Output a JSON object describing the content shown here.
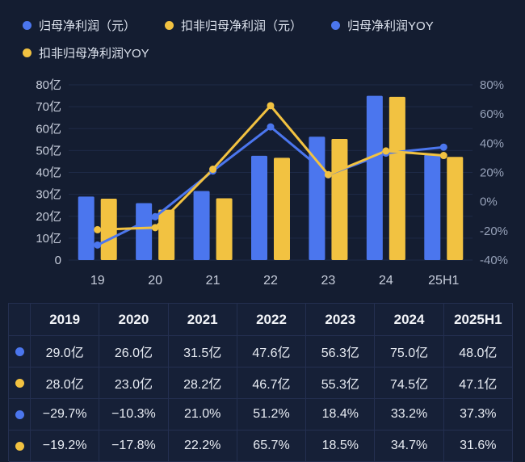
{
  "colors": {
    "blue": "#4b76ee",
    "yellow": "#f2c241",
    "background": "#141d31",
    "grid_line": "#1e2a47",
    "axis_text_left": "#c7cddb",
    "axis_text_right": "#96a1b8",
    "table_border": "#242f50"
  },
  "legend": {
    "items": [
      {
        "label": "归母净利润（元）",
        "dot": "blue"
      },
      {
        "label": "扣非归母净利润（元）",
        "dot": "yellow"
      },
      {
        "label": "归母净利润YOY",
        "dot": "blue"
      },
      {
        "label": "扣非归母净利润YOY",
        "dot": "yellow"
      }
    ]
  },
  "chart_data": {
    "type": "bar",
    "subtype": "combo-bar-line-dual-axis",
    "categories": [
      "19",
      "20",
      "21",
      "22",
      "23",
      "24",
      "25H1"
    ],
    "series": [
      {
        "key": "net-profit",
        "name": "归母净利润（元）",
        "type": "bar",
        "axis": "left",
        "color": "#4b76ee",
        "values": [
          29.0,
          26.0,
          31.5,
          47.6,
          56.3,
          75.0,
          48.0
        ]
      },
      {
        "key": "deducted-net-profit",
        "name": "扣非归母净利润（元）",
        "type": "bar",
        "axis": "left",
        "color": "#f2c241",
        "values": [
          28.0,
          23.0,
          28.2,
          46.7,
          55.3,
          74.5,
          47.1
        ]
      },
      {
        "key": "net-profit-yoy",
        "name": "归母净利润YOY",
        "type": "line",
        "axis": "right",
        "color": "#4b76ee",
        "values": [
          -29.7,
          -10.3,
          21.0,
          51.2,
          18.4,
          33.2,
          37.3
        ]
      },
      {
        "key": "deducted-net-profit-yoy",
        "name": "扣非归母净利润YOY",
        "type": "line",
        "axis": "right",
        "color": "#f2c241",
        "values": [
          -19.2,
          -17.8,
          22.2,
          65.7,
          18.5,
          34.7,
          31.6
        ]
      }
    ],
    "left_axis": {
      "unit": "亿",
      "min": 0,
      "max": 80,
      "ticks": [
        "80亿",
        "70亿",
        "60亿",
        "50亿",
        "40亿",
        "30亿",
        "20亿",
        "10亿",
        "0"
      ]
    },
    "right_axis": {
      "unit": "%",
      "min": -40,
      "max": 80,
      "ticks": [
        "80%",
        "60%",
        "40%",
        "20%",
        "0%",
        "-20%",
        "-40%"
      ]
    },
    "grid": true,
    "legend_position": "top"
  },
  "table": {
    "header": [
      "",
      "2019",
      "2020",
      "2021",
      "2022",
      "2023",
      "2024",
      "2025H1"
    ],
    "rows": [
      {
        "dot": "blue",
        "values": [
          "29.0亿",
          "26.0亿",
          "31.5亿",
          "47.6亿",
          "56.3亿",
          "75.0亿",
          "48.0亿"
        ]
      },
      {
        "dot": "yellow",
        "values": [
          "28.0亿",
          "23.0亿",
          "28.2亿",
          "46.7亿",
          "55.3亿",
          "74.5亿",
          "47.1亿"
        ]
      },
      {
        "dot": "blue",
        "values": [
          "−29.7%",
          "−10.3%",
          "21.0%",
          "51.2%",
          "18.4%",
          "33.2%",
          "37.3%"
        ]
      },
      {
        "dot": "yellow",
        "values": [
          "−19.2%",
          "−17.8%",
          "22.2%",
          "65.7%",
          "18.5%",
          "34.7%",
          "31.6%"
        ]
      }
    ]
  }
}
